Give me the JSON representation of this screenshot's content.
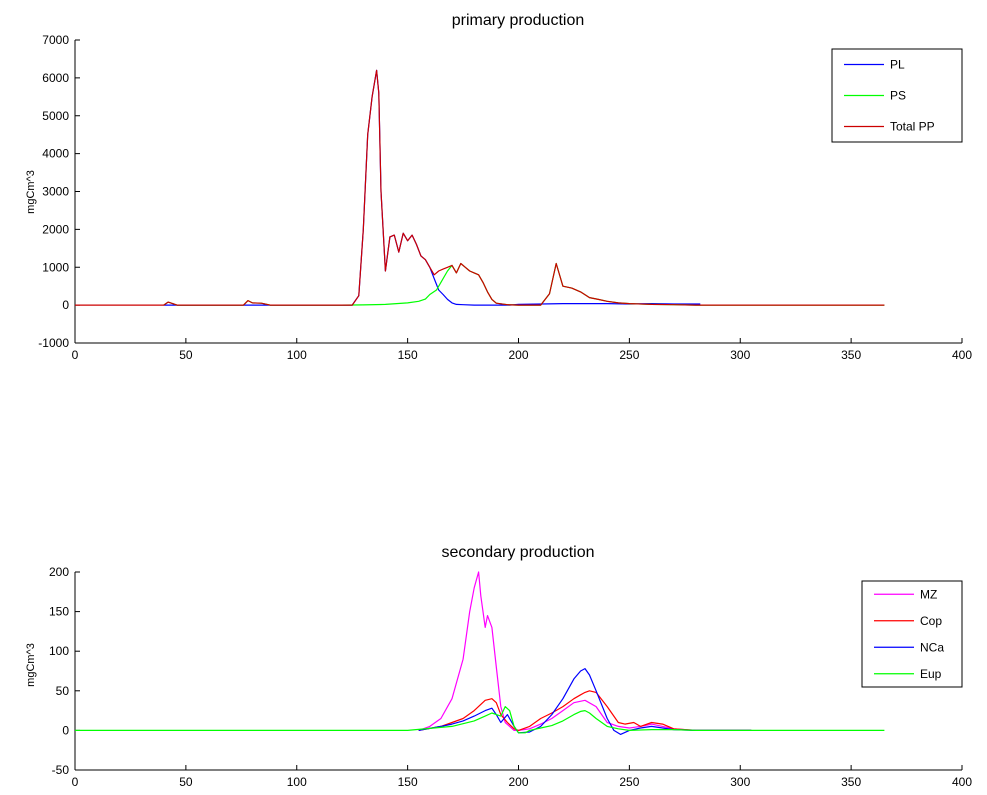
{
  "chart_data": [
    {
      "type": "line",
      "title": "primary production",
      "xlabel": "",
      "ylabel": "mgCm^3",
      "xlim": [
        0,
        400
      ],
      "ylim": [
        -1000,
        7000
      ],
      "xticks": [
        0,
        50,
        100,
        150,
        200,
        250,
        300,
        350,
        400
      ],
      "yticks": [
        -1000,
        0,
        1000,
        2000,
        3000,
        4000,
        5000,
        6000,
        7000
      ],
      "grid": false,
      "legend_position": "top-right",
      "series": [
        {
          "name": "PL",
          "color": "#0000ff",
          "x": [
            40,
            45,
            77,
            85,
            100,
            125,
            128,
            130,
            132,
            134,
            136,
            137,
            138,
            140,
            142,
            144,
            146,
            148,
            150,
            152,
            154,
            156,
            158,
            160,
            162,
            164,
            166,
            168,
            170,
            172,
            175,
            180,
            185,
            190,
            196,
            200,
            210,
            220,
            230,
            240,
            250,
            260,
            270,
            282
          ],
          "y": [
            0,
            0,
            0,
            0,
            0,
            0,
            250,
            2000,
            4500,
            5500,
            6200,
            5600,
            3000,
            900,
            1800,
            1850,
            1400,
            1900,
            1700,
            1850,
            1600,
            1300,
            1200,
            1000,
            700,
            400,
            280,
            150,
            60,
            20,
            10,
            0,
            0,
            0,
            0,
            20,
            30,
            40,
            40,
            40,
            30,
            40,
            30,
            30
          ]
        },
        {
          "name": "PS",
          "color": "#00ff00",
          "x": [
            40,
            42,
            44,
            46,
            76,
            78,
            80,
            84,
            88,
            100,
            120,
            130,
            140,
            150,
            155,
            158,
            160,
            163,
            165,
            168,
            170,
            172,
            174,
            176,
            178,
            180,
            182,
            184,
            186,
            188,
            190,
            195,
            200,
            210,
            214,
            217,
            220,
            224,
            228,
            232,
            236,
            240,
            245,
            250,
            260,
            270,
            280,
            300,
            365
          ],
          "y": [
            0,
            80,
            40,
            0,
            0,
            120,
            60,
            50,
            0,
            0,
            0,
            5,
            20,
            60,
            100,
            160,
            280,
            400,
            600,
            900,
            1050,
            850,
            1100,
            1000,
            900,
            850,
            800,
            600,
            350,
            150,
            50,
            10,
            0,
            0,
            300,
            1100,
            500,
            450,
            350,
            200,
            150,
            100,
            60,
            40,
            20,
            10,
            0,
            0,
            0
          ]
        },
        {
          "name": "Total PP",
          "color": "#cc0000",
          "x": [
            0,
            40,
            42,
            44,
            46,
            76,
            78,
            80,
            84,
            88,
            100,
            125,
            128,
            130,
            132,
            134,
            136,
            137,
            138,
            140,
            142,
            144,
            146,
            148,
            150,
            152,
            154,
            156,
            158,
            160,
            162,
            164,
            166,
            168,
            170,
            172,
            174,
            176,
            178,
            180,
            182,
            184,
            186,
            188,
            190,
            195,
            200,
            210,
            214,
            217,
            220,
            224,
            228,
            232,
            236,
            240,
            245,
            250,
            260,
            270,
            280,
            300,
            365
          ],
          "y": [
            0,
            0,
            80,
            40,
            0,
            0,
            120,
            60,
            50,
            0,
            0,
            0,
            250,
            2000,
            4500,
            5500,
            6200,
            5600,
            3000,
            900,
            1800,
            1850,
            1400,
            1900,
            1700,
            1850,
            1600,
            1300,
            1200,
            1000,
            800,
            900,
            950,
            1000,
            1050,
            850,
            1100,
            1000,
            900,
            850,
            800,
            600,
            350,
            150,
            50,
            10,
            0,
            0,
            300,
            1100,
            500,
            450,
            350,
            200,
            150,
            100,
            60,
            40,
            20,
            10,
            0,
            0,
            0
          ]
        }
      ]
    },
    {
      "type": "line",
      "title": "secondary production",
      "xlabel": "",
      "ylabel": "mgCm^3",
      "xlim": [
        0,
        400
      ],
      "ylim": [
        -50,
        200
      ],
      "xticks": [
        0,
        50,
        100,
        150,
        200,
        250,
        300,
        350,
        400
      ],
      "yticks": [
        -50,
        0,
        50,
        100,
        150,
        200
      ],
      "grid": false,
      "legend_position": "top-right",
      "series": [
        {
          "name": "MZ",
          "color": "#ff00ff",
          "x": [
            155,
            160,
            165,
            170,
            175,
            178,
            180,
            182,
            183,
            185,
            186,
            188,
            190,
            192,
            194,
            196,
            198,
            200,
            205,
            210,
            215,
            220,
            225,
            230,
            235,
            240,
            245,
            250,
            255,
            260,
            265,
            270,
            280,
            290,
            305
          ],
          "y": [
            0,
            5,
            15,
            40,
            90,
            150,
            180,
            200,
            170,
            130,
            145,
            130,
            80,
            30,
            10,
            5,
            0,
            0,
            2,
            8,
            15,
            25,
            35,
            38,
            30,
            10,
            5,
            3,
            5,
            8,
            5,
            2,
            0,
            0,
            0
          ]
        },
        {
          "name": "Cop",
          "color": "#ff0000",
          "x": [
            155,
            165,
            170,
            175,
            180,
            185,
            188,
            190,
            192,
            195,
            198,
            200,
            205,
            210,
            215,
            220,
            225,
            228,
            230,
            232,
            235,
            240,
            245,
            248,
            252,
            255,
            260,
            265,
            270,
            280,
            290,
            305
          ],
          "y": [
            0,
            5,
            10,
            15,
            25,
            38,
            40,
            35,
            20,
            10,
            2,
            0,
            5,
            15,
            22,
            30,
            40,
            45,
            48,
            50,
            48,
            30,
            10,
            8,
            10,
            5,
            10,
            8,
            2,
            0,
            0,
            0
          ]
        },
        {
          "name": "NCa",
          "color": "#0000ff",
          "x": [
            155,
            165,
            170,
            175,
            180,
            185,
            188,
            190,
            192,
            195,
            198,
            200,
            205,
            210,
            215,
            220,
            225,
            228,
            230,
            232,
            235,
            240,
            243,
            246,
            250,
            255,
            260,
            265,
            270,
            280,
            290,
            305
          ],
          "y": [
            0,
            5,
            8,
            12,
            18,
            25,
            28,
            20,
            10,
            20,
            5,
            -3,
            -2,
            5,
            20,
            40,
            65,
            75,
            78,
            70,
            50,
            15,
            0,
            -5,
            0,
            3,
            5,
            3,
            1,
            0,
            0,
            0
          ]
        },
        {
          "name": "Eup",
          "color": "#00ff00",
          "x": [
            0,
            150,
            170,
            180,
            185,
            188,
            190,
            192,
            194,
            196,
            198,
            200,
            203,
            205,
            210,
            215,
            220,
            225,
            228,
            230,
            232,
            235,
            240,
            245,
            250,
            260,
            270,
            280,
            300,
            365
          ],
          "y": [
            0,
            0,
            5,
            12,
            18,
            22,
            20,
            18,
            30,
            25,
            5,
            -3,
            -3,
            0,
            3,
            6,
            12,
            20,
            24,
            25,
            22,
            15,
            5,
            2,
            0,
            1,
            1,
            0,
            0,
            0
          ]
        }
      ]
    }
  ]
}
